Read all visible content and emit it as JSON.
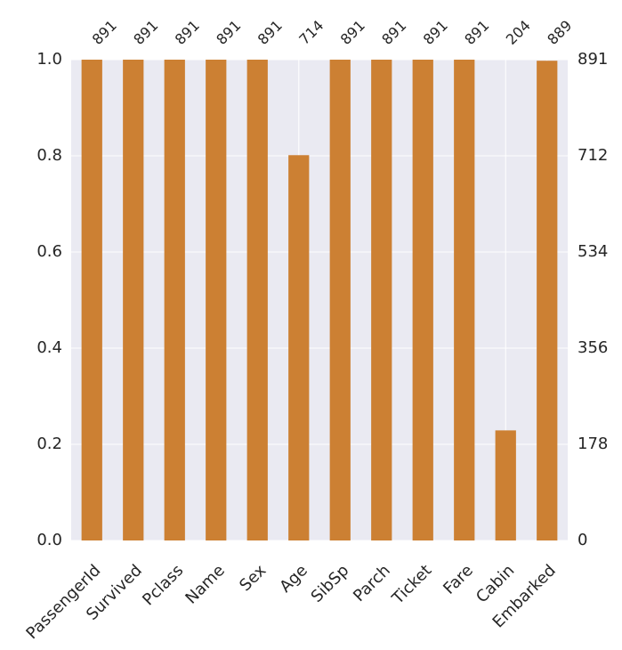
{
  "chart_data": {
    "type": "bar",
    "categories": [
      "PassengerId",
      "Survived",
      "Pclass",
      "Name",
      "Sex",
      "Age",
      "SibSp",
      "Parch",
      "Ticket",
      "Fare",
      "Cabin",
      "Embarked"
    ],
    "values": [
      1.0,
      1.0,
      1.0,
      1.0,
      1.0,
      0.8013468,
      1.0,
      1.0,
      1.0,
      1.0,
      0.2289562,
      0.9977553
    ],
    "counts": [
      891,
      891,
      891,
      891,
      891,
      714,
      891,
      891,
      891,
      891,
      204,
      889
    ],
    "count_labels": [
      "891",
      "891",
      "891",
      "891",
      "891",
      "714",
      "891",
      "891",
      "891",
      "891",
      "204",
      "889"
    ],
    "left_ticks": [
      {
        "value": 0.0,
        "label": "0.0"
      },
      {
        "value": 0.2,
        "label": "0.2"
      },
      {
        "value": 0.4,
        "label": "0.4"
      },
      {
        "value": 0.6,
        "label": "0.6"
      },
      {
        "value": 0.8,
        "label": "0.8"
      },
      {
        "value": 1.0,
        "label": "1.0"
      }
    ],
    "right_ticks": [
      {
        "value": 0.0,
        "label": "0"
      },
      {
        "value": 0.2,
        "label": "178"
      },
      {
        "value": 0.4,
        "label": "356"
      },
      {
        "value": 0.6,
        "label": "534"
      },
      {
        "value": 0.8,
        "label": "712"
      },
      {
        "value": 1.0,
        "label": "891"
      }
    ],
    "ylim": [
      0,
      1
    ],
    "grid": true,
    "bar_color": "#CC8033",
    "plot_background": "#EAEAF2",
    "grid_color": "#FFFFFF",
    "text_color": "#262626",
    "title": "",
    "xlabel": "",
    "ylabel": ""
  }
}
